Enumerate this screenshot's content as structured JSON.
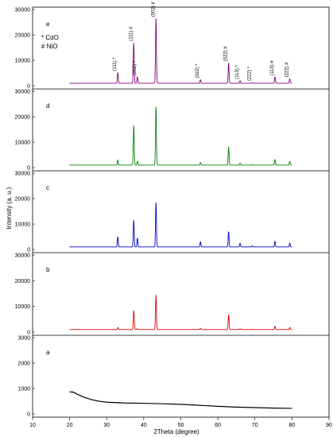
{
  "chart_data": {
    "type": "line",
    "xlabel": "2Theta (degree)",
    "ylabel": "Intensity (a. u.)",
    "xlim": [
      10,
      90
    ],
    "x_ticks": [
      "10",
      "20",
      "30",
      "40",
      "50",
      "60",
      "70",
      "80",
      "90"
    ],
    "legend": [
      "* CdO",
      "# NiO"
    ],
    "panels": [
      {
        "label": "e",
        "color": "#800080",
        "ylim": [
          0,
          30000
        ],
        "y_ticks": [
          "0",
          "10000",
          "20000",
          "30000"
        ],
        "baseline": 1000,
        "peaks": [
          {
            "x": 33.0,
            "y": 5200
          },
          {
            "x": 37.3,
            "y": 17000
          },
          {
            "x": 38.3,
            "y": 3500
          },
          {
            "x": 43.3,
            "y": 26500
          },
          {
            "x": 55.3,
            "y": 2400
          },
          {
            "x": 62.9,
            "y": 9000
          },
          {
            "x": 66.0,
            "y": 2000
          },
          {
            "x": 69.3,
            "y": 1300
          },
          {
            "x": 75.4,
            "y": 3500
          },
          {
            "x": 79.4,
            "y": 2700
          }
        ],
        "annotations": [
          {
            "text": "(111) *",
            "x": 33.0
          },
          {
            "text": "(111) #",
            "x": 37.3
          },
          {
            "text": "(002) *",
            "x": 38.3
          },
          {
            "text": "(002) #",
            "x": 43.3
          },
          {
            "text": "(022) *",
            "x": 55.3
          },
          {
            "text": "(022) #",
            "x": 62.9
          },
          {
            "text": "(113) *",
            "x": 66.0
          },
          {
            "text": "(222) *",
            "x": 69.3
          },
          {
            "text": "(113) #",
            "x": 75.4
          },
          {
            "text": "(222) #",
            "x": 79.4
          }
        ]
      },
      {
        "label": "d",
        "color": "#008000",
        "ylim": [
          0,
          30000
        ],
        "y_ticks": [
          "0",
          "10000",
          "20000",
          "30000"
        ],
        "baseline": 1000,
        "peaks": [
          {
            "x": 33.0,
            "y": 3000
          },
          {
            "x": 37.3,
            "y": 16500
          },
          {
            "x": 38.3,
            "y": 2500
          },
          {
            "x": 43.3,
            "y": 24000
          },
          {
            "x": 55.3,
            "y": 2000
          },
          {
            "x": 62.9,
            "y": 8200
          },
          {
            "x": 66.0,
            "y": 1800
          },
          {
            "x": 69.3,
            "y": 1200
          },
          {
            "x": 75.4,
            "y": 3200
          },
          {
            "x": 79.4,
            "y": 2500
          }
        ]
      },
      {
        "label": "c",
        "color": "#0000cc",
        "ylim": [
          0,
          30000
        ],
        "y_ticks": [
          "0",
          "10000",
          "20000",
          "30000"
        ],
        "baseline": 1000,
        "peaks": [
          {
            "x": 33.0,
            "y": 5000
          },
          {
            "x": 37.3,
            "y": 11500
          },
          {
            "x": 38.3,
            "y": 4500
          },
          {
            "x": 43.3,
            "y": 18500
          },
          {
            "x": 55.3,
            "y": 3000
          },
          {
            "x": 62.9,
            "y": 7000
          },
          {
            "x": 66.0,
            "y": 2500
          },
          {
            "x": 69.3,
            "y": 1500
          },
          {
            "x": 75.4,
            "y": 3200
          },
          {
            "x": 79.4,
            "y": 2500
          }
        ]
      },
      {
        "label": "b",
        "color": "#dd0000",
        "ylim": [
          0,
          30000
        ],
        "y_ticks": [
          "0",
          "10000",
          "20000",
          "30000"
        ],
        "baseline": 1000,
        "peaks": [
          {
            "x": 33.0,
            "y": 1800
          },
          {
            "x": 37.3,
            "y": 8500
          },
          {
            "x": 38.3,
            "y": 1400
          },
          {
            "x": 43.3,
            "y": 14500
          },
          {
            "x": 55.3,
            "y": 1500
          },
          {
            "x": 62.9,
            "y": 6800
          },
          {
            "x": 66.0,
            "y": 1300
          },
          {
            "x": 69.3,
            "y": 1100
          },
          {
            "x": 75.4,
            "y": 2300
          },
          {
            "x": 79.4,
            "y": 1800
          }
        ]
      },
      {
        "label": "a",
        "color": "#000000",
        "ylim": [
          0,
          3000
        ],
        "y_ticks": [
          "0",
          "1000",
          "2000",
          "3000"
        ],
        "curve": [
          {
            "x": 20,
            "y": 870
          },
          {
            "x": 21,
            "y": 860
          },
          {
            "x": 22,
            "y": 780
          },
          {
            "x": 24,
            "y": 650
          },
          {
            "x": 26,
            "y": 560
          },
          {
            "x": 28,
            "y": 500
          },
          {
            "x": 30,
            "y": 460
          },
          {
            "x": 35,
            "y": 430
          },
          {
            "x": 40,
            "y": 420
          },
          {
            "x": 45,
            "y": 400
          },
          {
            "x": 50,
            "y": 380
          },
          {
            "x": 55,
            "y": 340
          },
          {
            "x": 60,
            "y": 300
          },
          {
            "x": 65,
            "y": 270
          },
          {
            "x": 70,
            "y": 250
          },
          {
            "x": 75,
            "y": 230
          },
          {
            "x": 80,
            "y": 220
          }
        ]
      }
    ]
  }
}
